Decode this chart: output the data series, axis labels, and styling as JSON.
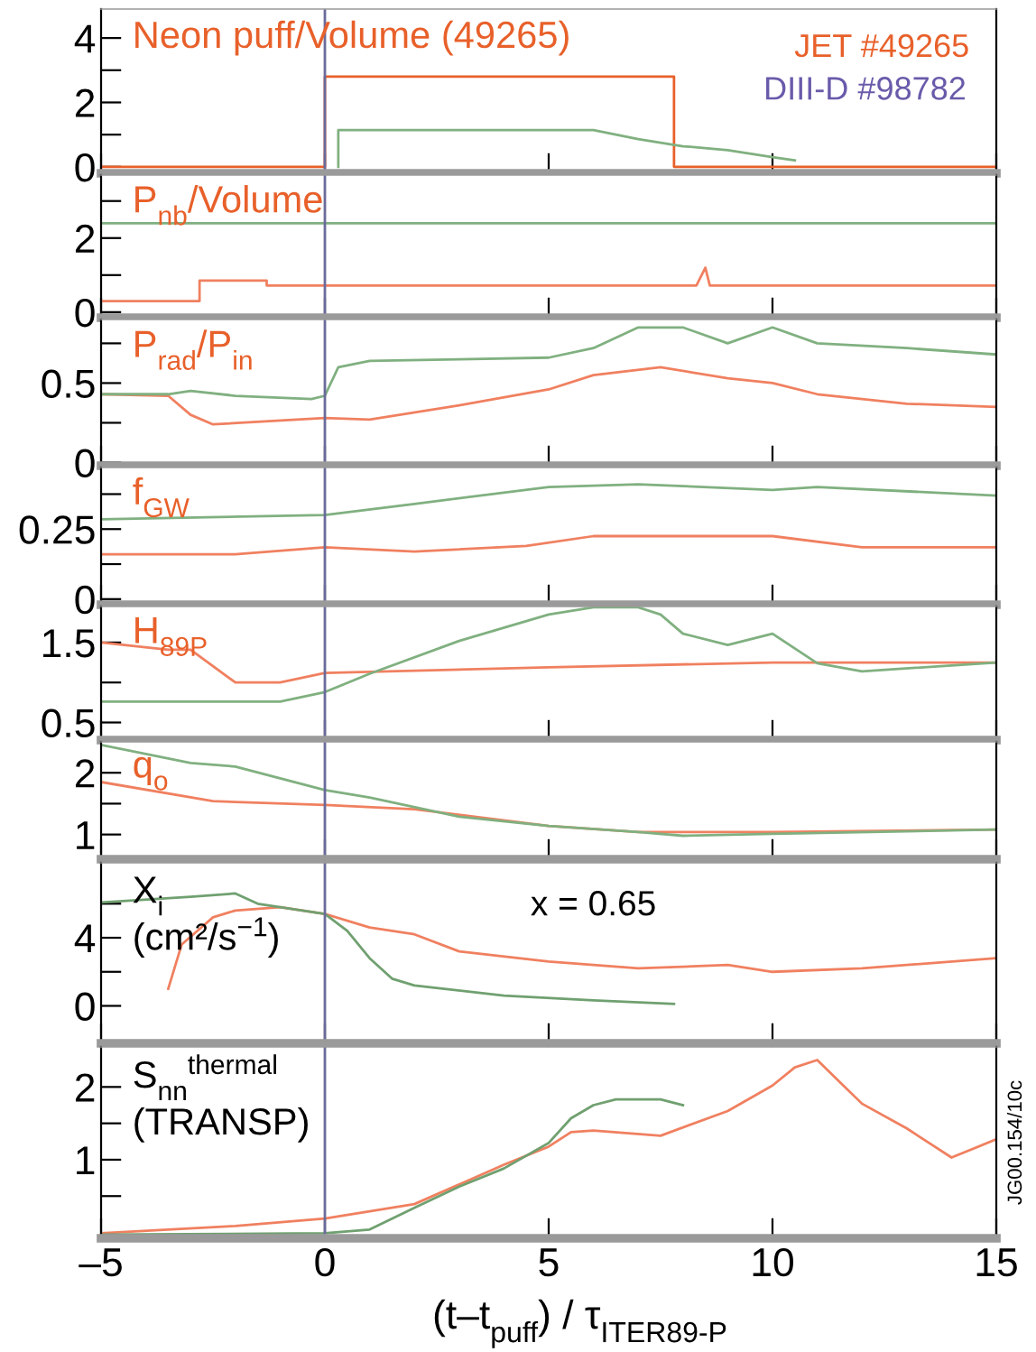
{
  "chart_data": [
    {
      "type": "line",
      "title": "Neon puff/Volume (49265)",
      "xlim": [
        -5,
        15
      ],
      "xticks": [
        -5,
        0,
        5,
        10,
        15
      ],
      "ylim": [
        -0.2,
        4.9
      ],
      "yticks": [
        0,
        {
          "value": 1,
          "label": null
        },
        2,
        {
          "value": 3,
          "label": null
        },
        4
      ],
      "tick_labels": "y",
      "ref_lines": [
        {
          "axis": "x",
          "value": 0,
          "color": "#6a6a9a"
        }
      ],
      "series": [
        {
          "name": "JET #49265",
          "color": "#e8602a",
          "x": [
            -5,
            0,
            0,
            7.8,
            7.8,
            15
          ],
          "values": [
            0,
            0,
            2.8,
            2.8,
            0,
            0
          ]
        },
        {
          "name": "DIII-D #98782",
          "color": "#80b080",
          "x": [
            0.3,
            0.3,
            6,
            7,
            8,
            9,
            10,
            10.5
          ],
          "values": [
            0,
            1.14,
            1.14,
            0.86,
            0.64,
            0.52,
            0.3,
            0.2
          ]
        }
      ]
    },
    {
      "type": "line",
      "title": "P$_{nb}$/Volume",
      "xlim": [
        -5,
        15
      ],
      "xticks": [
        -5,
        0,
        5,
        10,
        15
      ],
      "ylim": [
        -0.15,
        3.7
      ],
      "yticks": [
        0,
        {
          "value": 1,
          "label": null
        },
        2,
        {
          "value": 3,
          "label": null
        }
      ],
      "tick_labels": "y",
      "ref_lines": [
        {
          "axis": "x",
          "value": 0,
          "color": "#6a6a9a"
        }
      ],
      "series": [
        {
          "color": "#f08060",
          "x": [
            -5,
            -2.8,
            -2.8,
            -1.3,
            -1.3,
            8.3,
            8.5,
            8.6,
            15
          ],
          "values": [
            0.3,
            0.3,
            0.85,
            0.85,
            0.72,
            0.72,
            1.2,
            0.72,
            0.72
          ]
        },
        {
          "color": "#80b080",
          "x": [
            -5,
            0,
            5,
            10,
            15
          ],
          "values": [
            2.4,
            2.4,
            2.4,
            2.4,
            2.4
          ]
        }
      ]
    },
    {
      "type": "line",
      "title": "P$_{rad}$/P$_{in}$",
      "xlim": [
        -5,
        15
      ],
      "xticks": [
        -5,
        0,
        5,
        10,
        15
      ],
      "ylim": [
        -0.02,
        0.9
      ],
      "yticks": [
        0,
        {
          "value": 0.25,
          "label": null
        },
        0.5,
        {
          "value": 0.75,
          "label": null
        }
      ],
      "tick_labels": "y",
      "ref_lines": [
        {
          "axis": "x",
          "value": 0,
          "color": "#6a6a9a"
        }
      ],
      "series": [
        {
          "color": "#f08060",
          "x": [
            -5,
            -3.5,
            -3,
            -2.5,
            0,
            1,
            3,
            5,
            6,
            7.5,
            9,
            10,
            11,
            13,
            15
          ],
          "values": [
            0.43,
            0.42,
            0.3,
            0.24,
            0.28,
            0.27,
            0.36,
            0.46,
            0.55,
            0.6,
            0.53,
            0.5,
            0.43,
            0.37,
            0.35
          ]
        },
        {
          "color": "#80b080",
          "x": [
            -5,
            -3.5,
            -3,
            -2,
            -0.3,
            0,
            0.3,
            1,
            3,
            5,
            6,
            7,
            8,
            9,
            10,
            11,
            13,
            15
          ],
          "values": [
            0.43,
            0.43,
            0.45,
            0.42,
            0.4,
            0.42,
            0.6,
            0.64,
            0.65,
            0.66,
            0.72,
            0.85,
            0.85,
            0.75,
            0.85,
            0.75,
            0.72,
            0.68
          ]
        }
      ]
    },
    {
      "type": "line",
      "title": "f$_{GW}$",
      "xlim": [
        -5,
        15
      ],
      "xticks": [
        -5,
        0,
        5,
        10,
        15
      ],
      "ylim": [
        -0.02,
        0.47
      ],
      "yticks": [
        0,
        {
          "value": 0.125,
          "label": null
        },
        0.25,
        {
          "value": 0.375,
          "label": null
        }
      ],
      "tick_labels": "y",
      "ref_lines": [
        {
          "axis": "x",
          "value": 0,
          "color": "#6a6a9a"
        }
      ],
      "series": [
        {
          "color": "#f08060",
          "x": [
            -5,
            -2,
            0,
            2,
            4.5,
            6,
            10,
            12,
            15
          ],
          "values": [
            0.16,
            0.16,
            0.185,
            0.17,
            0.19,
            0.225,
            0.225,
            0.185,
            0.185
          ]
        },
        {
          "color": "#80b080",
          "x": [
            -5,
            0,
            2,
            5,
            7,
            10,
            11,
            15
          ],
          "values": [
            0.285,
            0.3,
            0.34,
            0.4,
            0.41,
            0.39,
            0.4,
            0.37
          ]
        }
      ]
    },
    {
      "type": "line",
      "title": "H$_{89P}$",
      "xlim": [
        -5,
        15
      ],
      "xticks": [
        -5,
        0,
        5,
        10,
        15
      ],
      "ylim": [
        0.28,
        1.95
      ],
      "yticks": [
        0.5,
        {
          "value": 1,
          "label": null
        },
        1.5
      ],
      "tick_labels": "y",
      "ref_lines": [
        {
          "axis": "x",
          "value": 0,
          "color": "#6a6a9a"
        }
      ],
      "series": [
        {
          "color": "#f08060",
          "x": [
            -5,
            -3.5,
            -3,
            -2,
            -1,
            0,
            5,
            10,
            15
          ],
          "values": [
            1.5,
            1.41,
            1.41,
            1.0,
            1.0,
            1.12,
            1.19,
            1.25,
            1.25
          ]
        },
        {
          "color": "#80b080",
          "x": [
            -5,
            -1,
            0,
            1,
            3,
            5,
            6,
            7,
            7.5,
            8,
            9,
            10,
            11,
            12,
            15
          ],
          "values": [
            0.76,
            0.76,
            0.88,
            1.11,
            1.52,
            1.85,
            1.94,
            1.94,
            1.85,
            1.61,
            1.47,
            1.61,
            1.24,
            1.14,
            1.25
          ]
        }
      ]
    },
    {
      "type": "line",
      "title": "q$_{o}$",
      "xlim": [
        -5,
        15
      ],
      "xticks": [
        -5,
        0,
        5,
        10,
        15
      ],
      "ylim": [
        0.6,
        2.5
      ],
      "yticks": [
        1,
        {
          "value": 1.5,
          "label": null
        },
        2
      ],
      "tick_labels": "y",
      "ref_lines": [
        {
          "axis": "x",
          "value": 0,
          "color": "#6a6a9a"
        }
      ],
      "series": [
        {
          "color": "#f08060",
          "x": [
            -5,
            -2.5,
            0,
            2,
            5,
            7,
            10,
            15
          ],
          "values": [
            1.85,
            1.54,
            1.48,
            1.41,
            1.14,
            1.04,
            1.04,
            1.08
          ]
        },
        {
          "color": "#80b080",
          "x": [
            -5,
            -3,
            -2,
            0,
            1,
            3,
            5,
            7,
            8,
            10,
            15
          ],
          "values": [
            2.45,
            2.16,
            2.1,
            1.72,
            1.6,
            1.29,
            1.14,
            1.04,
            0.98,
            1.01,
            1.08
          ]
        }
      ]
    },
    {
      "type": "line",
      "title": "X$_{i}$\n(cm²/s$^{−1}$)",
      "annotations": [
        "x = 0.65"
      ],
      "xlim": [
        -5,
        15
      ],
      "xticks": [
        -5,
        0,
        5,
        10,
        15
      ],
      "ylim": [
        -2.2,
        8.4
      ],
      "yticks": [
        0,
        {
          "value": 2,
          "label": null
        },
        4,
        {
          "value": 6,
          "label": null
        }
      ],
      "tick_labels": "y",
      "ref_lines": [
        {
          "axis": "x",
          "value": 0,
          "color": "#6a6a9a"
        }
      ],
      "series": [
        {
          "color": "#f08060",
          "x": [
            -3.5,
            -3.2,
            -2.5,
            -2,
            -1,
            0,
            1,
            2,
            3,
            5,
            7,
            9,
            10,
            12,
            15
          ],
          "values": [
            1.0,
            3.6,
            5.2,
            5.6,
            5.8,
            5.4,
            4.6,
            4.2,
            3.2,
            2.6,
            2.2,
            2.4,
            2.0,
            2.2,
            2.8
          ]
        },
        {
          "color": "#70a070",
          "x": [
            -5,
            -3,
            -2,
            -1.5,
            0,
            0.5,
            1,
            1.5,
            2,
            4,
            6,
            7.8
          ],
          "values": [
            6.08,
            6.4,
            6.6,
            6.0,
            5.4,
            4.4,
            2.8,
            1.6,
            1.2,
            0.6,
            0.32,
            0.12
          ]
        }
      ]
    },
    {
      "type": "line",
      "title": "S$_{nn}$$^{thermal}$\n(TRANSP)",
      "xlabel": "(t–t$_{puff}$) / τ$_{ITER89-P}$",
      "annotations": [
        "JG00.154/10c"
      ],
      "xlim": [
        -5,
        15
      ],
      "xticks": [
        {
          "value": -5,
          "label": "–5"
        },
        0,
        5,
        10,
        15
      ],
      "ylim": [
        -0.08,
        2.55
      ],
      "yticks": [
        {
          "value": 0.5,
          "label": null
        },
        1,
        {
          "value": 1.5,
          "label": null
        },
        2
      ],
      "ref_lines": [
        {
          "axis": "x",
          "value": 0,
          "color": "#6a6a9a"
        }
      ],
      "series": [
        {
          "color": "#f08060",
          "x": [
            -5,
            -2,
            0,
            2,
            4,
            5,
            5.5,
            6,
            7.5,
            9,
            10,
            10.5,
            11,
            11.5,
            12,
            13,
            14,
            15
          ],
          "values": [
            -0.01,
            0.09,
            0.19,
            0.39,
            0.93,
            1.18,
            1.38,
            1.4,
            1.33,
            1.67,
            2.02,
            2.27,
            2.37,
            2.07,
            1.77,
            1.43,
            1.03,
            1.28
          ]
        },
        {
          "color": "#70a070",
          "x": [
            -5,
            0,
            1,
            2,
            3,
            4,
            5,
            5.5,
            6,
            6.5,
            7.5,
            8
          ],
          "values": [
            -0.03,
            -0.01,
            0.04,
            0.34,
            0.63,
            0.88,
            1.23,
            1.57,
            1.75,
            1.83,
            1.83,
            1.75
          ]
        }
      ]
    }
  ]
}
